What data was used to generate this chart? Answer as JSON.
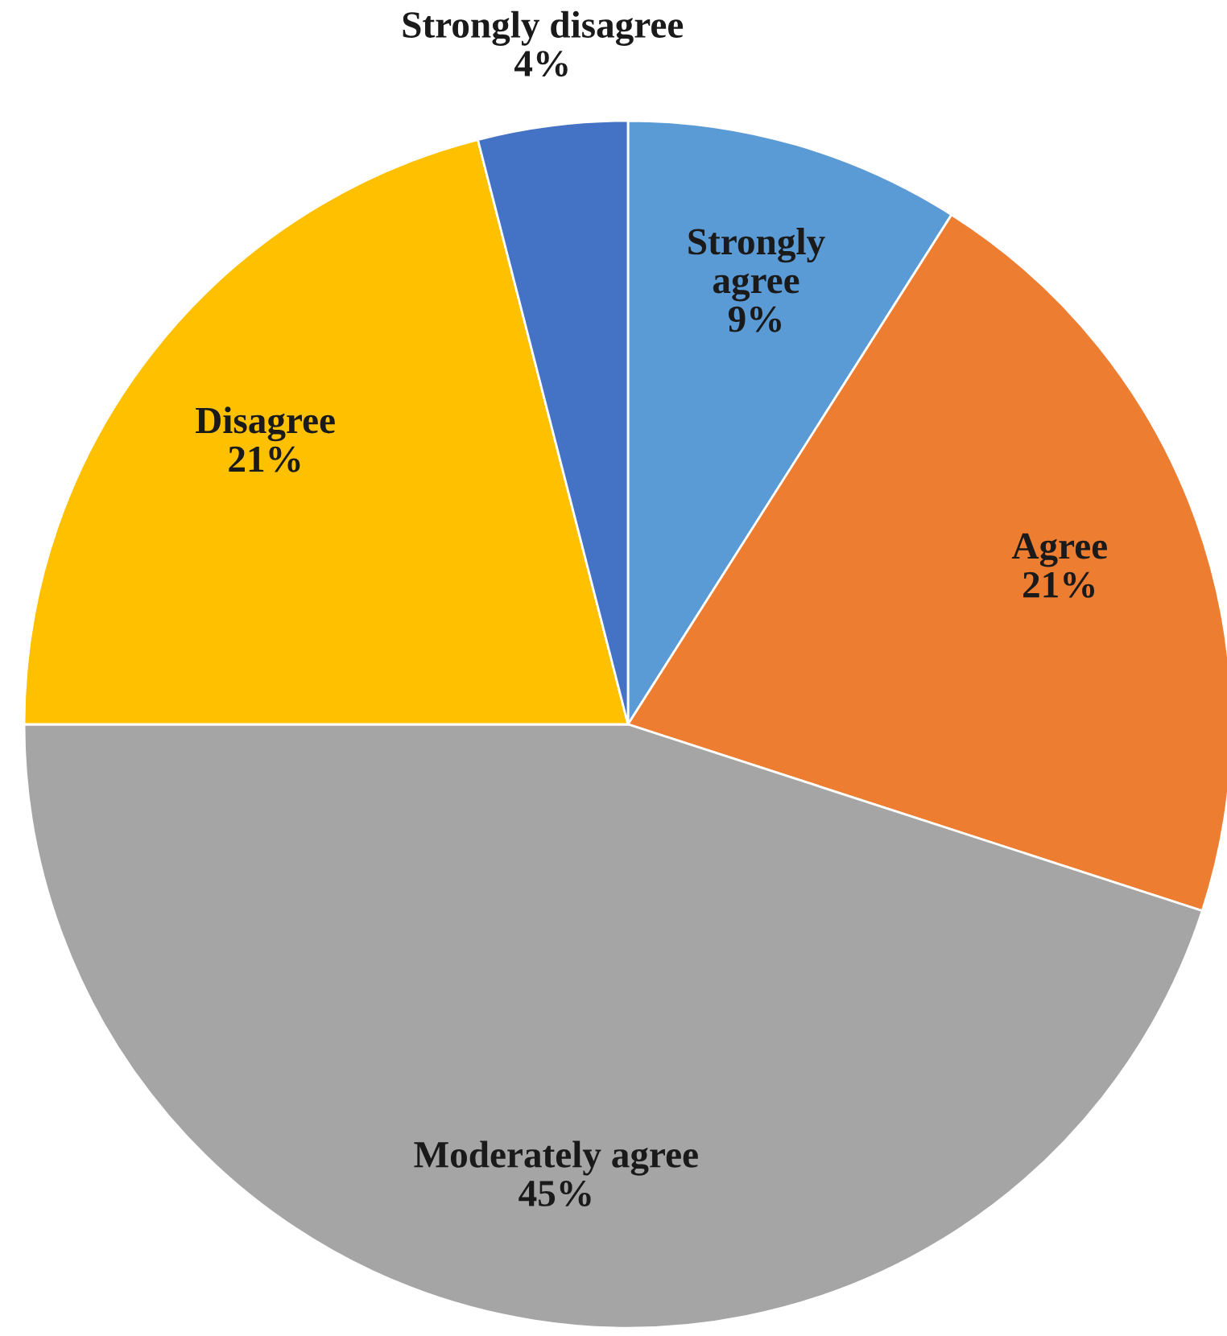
{
  "chart_data": {
    "type": "pie",
    "categories": [
      "Strongly agree",
      "Agree",
      "Moderately agree",
      "Disagree",
      "Strongly disagree"
    ],
    "values": [
      9,
      21,
      45,
      21,
      4
    ],
    "value_labels": [
      "9%",
      "21%",
      "45%",
      "21%",
      "4%"
    ],
    "colors": [
      "#5b9bd5",
      "#ed7d31",
      "#a5a5a5",
      "#ffc000",
      "#4472c4"
    ]
  }
}
